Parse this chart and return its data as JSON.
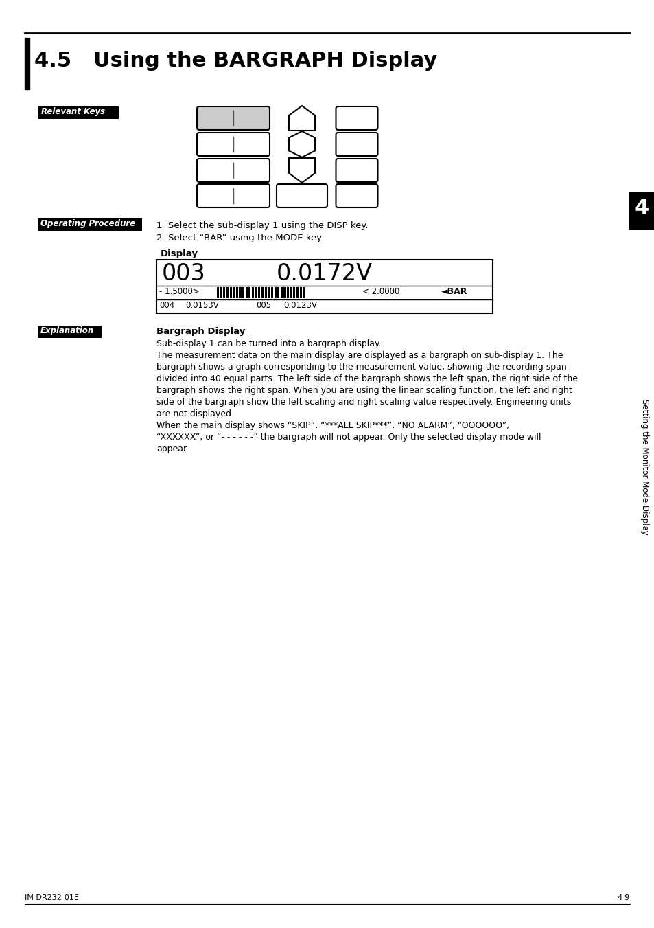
{
  "title": "4.5   Using the BARGRAPH Display",
  "page_bg": "#ffffff",
  "label_relevant_keys": "Relevant Keys",
  "label_operating_procedure": "Operating Procedure",
  "label_explanation": "Explanation",
  "op_proc_lines": [
    "1  Select the sub-display 1 using the DISP key.",
    "2  Select “BAR” using the MODE key."
  ],
  "display_label": "Display",
  "display_row1_left": "003",
  "display_row1_right": "0.0172V",
  "display_row2_left": "- 1.5000>",
  "display_row2_mid": "< 2.0000",
  "display_row2_right": "◄BAR",
  "explanation_title": "Bargraph Display",
  "explanation_lines": [
    "Sub-display 1 can be turned into a bargraph display.",
    "The measurement data on the main display are displayed as a bargraph on sub-display 1. The",
    "bargraph shows a graph corresponding to the measurement value, showing the recording span",
    "divided into 40 equal parts. The left side of the bargraph shows the left span, the right side of the",
    "bargraph shows the right span. When you are using the linear scaling function, the left and right",
    "side of the bargraph show the left scaling and right scaling value respectively. Engineering units",
    "are not displayed.",
    "When the main display shows “SKIP”, “***ALL SKIP***”, “NO ALARM”, “OOOOOO”,",
    "“XXXXXX”, or “- - - - - -” the bargraph will not appear. Only the selected display mode will",
    "appear."
  ],
  "sidebar_text": "Setting the Monitor Mode Display",
  "sidebar_number": "4",
  "footer_left": "IM DR232-01E",
  "footer_right": "4-9"
}
